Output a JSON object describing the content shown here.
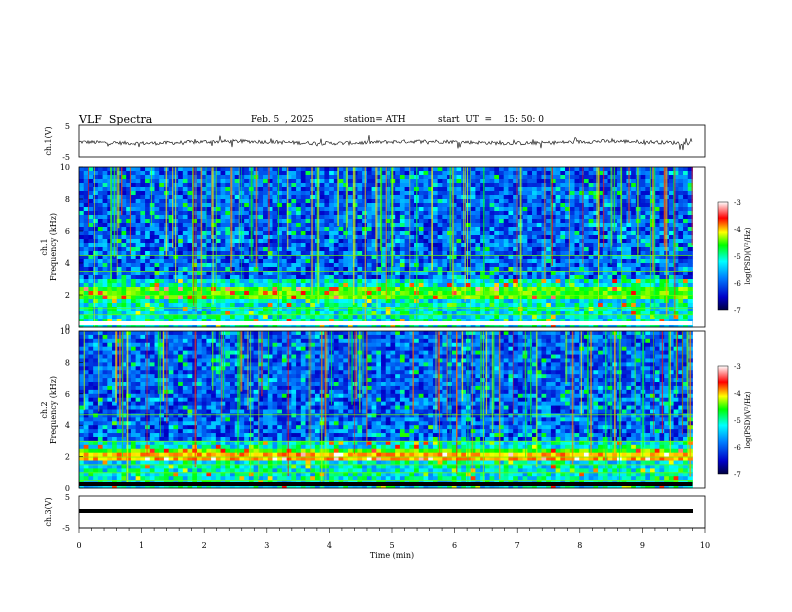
{
  "header": {
    "title": "VLF  Spectra",
    "date": "Feb. 5  , 2025",
    "station": "station= ATH",
    "start": "start  UT  =    15: 50: 0"
  },
  "chart_data": [
    {
      "type": "line",
      "name": "ch1-waveform",
      "ylabel": "ch.1(V)",
      "yticks": [
        "5",
        "-5"
      ],
      "ylim": [
        -5,
        5
      ],
      "xlim": [
        0,
        10
      ],
      "data_extent_min": 9.8,
      "baseline": -0.4,
      "note": "noisy waveform around slightly negative baseline"
    },
    {
      "type": "heatmap",
      "name": "ch1-spectrogram",
      "ylabel": "Frequency  (kHz)",
      "channel": "ch.1",
      "yticks": [
        "0",
        "2",
        "4",
        "6",
        "8",
        "10"
      ],
      "ylim": [
        0,
        10
      ],
      "xlim": [
        0,
        10
      ],
      "colorbar": {
        "label": "log(PSD)(V²/Hz)",
        "ticks": [
          "-3",
          "-4",
          "-5",
          "-6",
          "-7"
        ],
        "range": [
          -7,
          -3
        ]
      }
    },
    {
      "type": "heatmap",
      "name": "ch2-spectrogram",
      "ylabel": "Frequency  (kHz)",
      "channel": "ch.2",
      "yticks": [
        "0",
        "2",
        "4",
        "6",
        "8",
        "10"
      ],
      "ylim": [
        0,
        10
      ],
      "xlim": [
        0,
        10
      ],
      "colorbar": {
        "label": "log(PSD)(V²/Hz)",
        "ticks": [
          "-3",
          "-4",
          "-5",
          "-6",
          "-7"
        ],
        "range": [
          -7,
          -3
        ]
      }
    },
    {
      "type": "line",
      "name": "ch3-waveform",
      "ylabel": "ch.3(V)",
      "yticks": [
        "5",
        "-5"
      ],
      "ylim": [
        -5,
        5
      ],
      "xlim": [
        0,
        10
      ],
      "baseline": -2.2
    }
  ],
  "xaxis": {
    "label": "Time  (min)",
    "ticks": [
      "0",
      "1",
      "2",
      "3",
      "4",
      "5",
      "6",
      "7",
      "8",
      "9",
      "10"
    ]
  }
}
